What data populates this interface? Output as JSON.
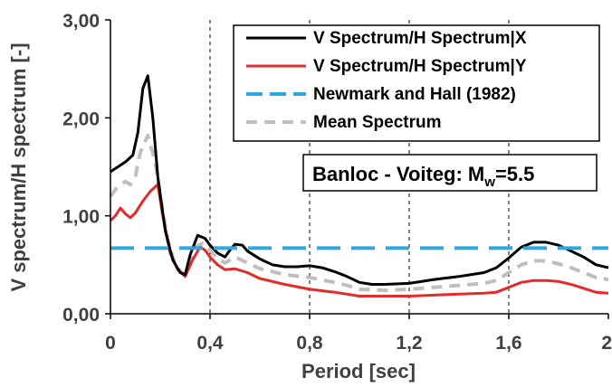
{
  "chart_data": {
    "type": "line",
    "xlabel": "Period [sec]",
    "ylabel": "V spectrum/H spectrum [-]",
    "xlim": [
      0,
      2
    ],
    "ylim": [
      0,
      3
    ],
    "x_ticks": [
      "0",
      "0,4",
      "0,8",
      "1,2",
      "1,6",
      "2"
    ],
    "y_ticks": [
      "0,00",
      "1,00",
      "2,00",
      "3,00"
    ],
    "vertical_gridlines": [
      0.4,
      0.8,
      1.2,
      1.6
    ],
    "legend_position": "top-right",
    "annotation": {
      "prefix": "Banloc - Voiteg: M",
      "subscript": "w",
      "suffix": "=5.5"
    },
    "series": [
      {
        "name": "V Spectrum/H Spectrum|X",
        "color": "#000000",
        "style": "solid",
        "points": [
          [
            0,
            1.45
          ],
          [
            0.03,
            1.5
          ],
          [
            0.06,
            1.55
          ],
          [
            0.09,
            1.62
          ],
          [
            0.11,
            1.85
          ],
          [
            0.13,
            2.3
          ],
          [
            0.15,
            2.43
          ],
          [
            0.17,
            2.0
          ],
          [
            0.19,
            1.4
          ],
          [
            0.22,
            0.85
          ],
          [
            0.25,
            0.55
          ],
          [
            0.28,
            0.42
          ],
          [
            0.3,
            0.4
          ],
          [
            0.32,
            0.6
          ],
          [
            0.35,
            0.8
          ],
          [
            0.38,
            0.77
          ],
          [
            0.4,
            0.7
          ],
          [
            0.43,
            0.62
          ],
          [
            0.46,
            0.58
          ],
          [
            0.48,
            0.65
          ],
          [
            0.5,
            0.71
          ],
          [
            0.53,
            0.7
          ],
          [
            0.55,
            0.64
          ],
          [
            0.6,
            0.56
          ],
          [
            0.65,
            0.5
          ],
          [
            0.7,
            0.48
          ],
          [
            0.75,
            0.48
          ],
          [
            0.8,
            0.49
          ],
          [
            0.85,
            0.47
          ],
          [
            0.9,
            0.43
          ],
          [
            0.95,
            0.38
          ],
          [
            1.0,
            0.32
          ],
          [
            1.05,
            0.3
          ],
          [
            1.1,
            0.3
          ],
          [
            1.2,
            0.31
          ],
          [
            1.3,
            0.35
          ],
          [
            1.4,
            0.38
          ],
          [
            1.5,
            0.42
          ],
          [
            1.55,
            0.47
          ],
          [
            1.6,
            0.57
          ],
          [
            1.65,
            0.68
          ],
          [
            1.7,
            0.73
          ],
          [
            1.75,
            0.73
          ],
          [
            1.8,
            0.7
          ],
          [
            1.85,
            0.64
          ],
          [
            1.9,
            0.58
          ],
          [
            1.95,
            0.5
          ],
          [
            2.0,
            0.47
          ]
        ]
      },
      {
        "name": "V Spectrum/H Spectrum|Y",
        "color": "#e32b2b",
        "style": "solid",
        "points": [
          [
            0,
            0.95
          ],
          [
            0.02,
            1.0
          ],
          [
            0.04,
            1.08
          ],
          [
            0.06,
            1.02
          ],
          [
            0.08,
            0.98
          ],
          [
            0.1,
            1.03
          ],
          [
            0.13,
            1.15
          ],
          [
            0.16,
            1.25
          ],
          [
            0.19,
            1.32
          ],
          [
            0.21,
            1.0
          ],
          [
            0.24,
            0.62
          ],
          [
            0.27,
            0.45
          ],
          [
            0.3,
            0.38
          ],
          [
            0.33,
            0.55
          ],
          [
            0.36,
            0.68
          ],
          [
            0.38,
            0.65
          ],
          [
            0.4,
            0.58
          ],
          [
            0.43,
            0.5
          ],
          [
            0.46,
            0.45
          ],
          [
            0.5,
            0.46
          ],
          [
            0.55,
            0.42
          ],
          [
            0.6,
            0.36
          ],
          [
            0.7,
            0.3
          ],
          [
            0.8,
            0.25
          ],
          [
            0.9,
            0.22
          ],
          [
            0.95,
            0.2
          ],
          [
            1.0,
            0.18
          ],
          [
            1.1,
            0.18
          ],
          [
            1.2,
            0.18
          ],
          [
            1.3,
            0.19
          ],
          [
            1.4,
            0.2
          ],
          [
            1.5,
            0.21
          ],
          [
            1.55,
            0.22
          ],
          [
            1.6,
            0.27
          ],
          [
            1.65,
            0.32
          ],
          [
            1.7,
            0.34
          ],
          [
            1.75,
            0.34
          ],
          [
            1.8,
            0.33
          ],
          [
            1.85,
            0.3
          ],
          [
            1.9,
            0.26
          ],
          [
            1.95,
            0.22
          ],
          [
            2.0,
            0.21
          ]
        ]
      },
      {
        "name": "Newmark and Hall (1982)",
        "color": "#2ea8e0",
        "style": "dashed",
        "points": [
          [
            0,
            0.67
          ],
          [
            2.0,
            0.67
          ]
        ]
      },
      {
        "name": "Mean Spectrum",
        "color": "#bfbfbf",
        "style": "dotted",
        "points": [
          [
            0,
            1.2
          ],
          [
            0.03,
            1.3
          ],
          [
            0.06,
            1.35
          ],
          [
            0.08,
            1.32
          ],
          [
            0.1,
            1.4
          ],
          [
            0.12,
            1.65
          ],
          [
            0.15,
            1.82
          ],
          [
            0.18,
            1.55
          ],
          [
            0.2,
            1.2
          ],
          [
            0.23,
            0.75
          ],
          [
            0.26,
            0.5
          ],
          [
            0.29,
            0.41
          ],
          [
            0.31,
            0.42
          ],
          [
            0.34,
            0.68
          ],
          [
            0.37,
            0.72
          ],
          [
            0.4,
            0.65
          ],
          [
            0.43,
            0.56
          ],
          [
            0.46,
            0.52
          ],
          [
            0.5,
            0.58
          ],
          [
            0.55,
            0.52
          ],
          [
            0.6,
            0.46
          ],
          [
            0.7,
            0.4
          ],
          [
            0.8,
            0.37
          ],
          [
            0.9,
            0.32
          ],
          [
            0.95,
            0.29
          ],
          [
            1.0,
            0.25
          ],
          [
            1.1,
            0.24
          ],
          [
            1.2,
            0.25
          ],
          [
            1.3,
            0.27
          ],
          [
            1.4,
            0.29
          ],
          [
            1.5,
            0.31
          ],
          [
            1.55,
            0.34
          ],
          [
            1.6,
            0.42
          ],
          [
            1.65,
            0.5
          ],
          [
            1.7,
            0.54
          ],
          [
            1.75,
            0.54
          ],
          [
            1.8,
            0.51
          ],
          [
            1.85,
            0.47
          ],
          [
            1.9,
            0.42
          ],
          [
            1.95,
            0.37
          ],
          [
            2.0,
            0.35
          ]
        ]
      }
    ]
  }
}
